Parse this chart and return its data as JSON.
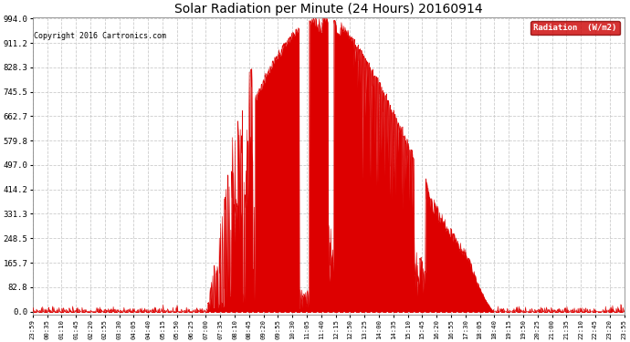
{
  "title": "Solar Radiation per Minute (24 Hours) 20160914",
  "copyright_text": "Copyright 2016 Cartronics.com",
  "background_color": "#ffffff",
  "plot_bg_color": "#ffffff",
  "line_color": "#dd0000",
  "fill_color": "#dd0000",
  "grid_color": "#cccccc",
  "ytick_values": [
    0.0,
    82.8,
    165.7,
    248.5,
    331.3,
    414.2,
    497.0,
    579.8,
    662.7,
    745.5,
    828.3,
    911.2,
    994.0
  ],
  "ymax": 994.0,
  "legend_label": "Radiation  (W/m2)",
  "legend_bg": "#cc0000",
  "legend_text_color": "#ffffff",
  "tick_labels": [
    "23:59",
    "00:35",
    "01:10",
    "01:45",
    "02:20",
    "02:55",
    "03:30",
    "04:05",
    "04:40",
    "05:15",
    "05:50",
    "06:25",
    "07:00",
    "07:35",
    "08:10",
    "08:45",
    "09:20",
    "09:55",
    "10:30",
    "11:05",
    "11:40",
    "12:15",
    "12:50",
    "13:25",
    "14:00",
    "14:35",
    "15:10",
    "15:45",
    "16:20",
    "16:55",
    "17:30",
    "18:05",
    "18:40",
    "19:15",
    "19:50",
    "20:25",
    "21:00",
    "21:35",
    "22:10",
    "22:45",
    "23:20",
    "23:55"
  ]
}
